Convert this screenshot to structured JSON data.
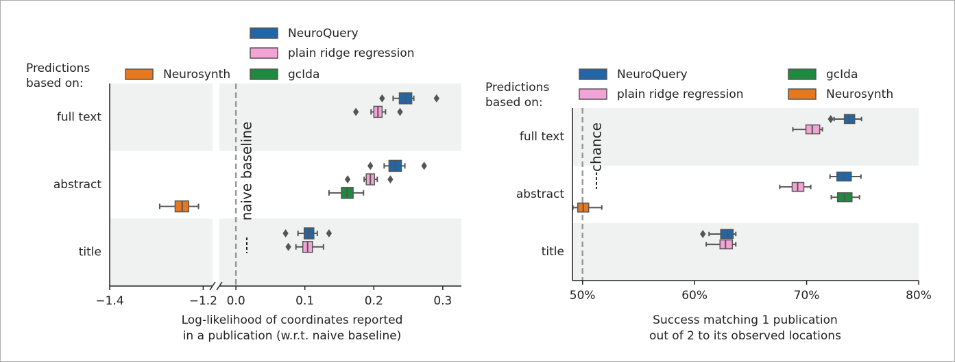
{
  "chart_data": [
    {
      "type": "box",
      "orientation": "horizontal",
      "legend_title": [
        "Predictions",
        "based on:"
      ],
      "categories": [
        "full text",
        "abstract",
        "title"
      ],
      "xlabel": [
        "Log-likelihood of coordinates reported",
        "in a publication (w.r.t. naive baseline)"
      ],
      "xlim": [
        -1.4,
        0.327
      ],
      "xbreak": [
        -1.18,
        -0.024
      ],
      "xticks": [
        {
          "value": -1.4,
          "label": "−1.4"
        },
        {
          "value": -1.2,
          "label": "−1.2"
        },
        {
          "value": 0,
          "label": "0.0"
        },
        0.1,
        0.2,
        0.3
      ],
      "row_shading": "#f0f2f1",
      "reference": {
        "value": 0,
        "label": "naive baseline",
        "color": "#999999"
      },
      "series": [
        {
          "name": "NeuroQuery",
          "color": "#2166a6",
          "boxes": [
            {
              "whislo": 0.228,
              "q1": 0.237,
              "med": 0.246,
              "q3": 0.255,
              "whishi": 0.258,
              "fliers": [
                0.212,
                0.291
              ]
            },
            {
              "whislo": 0.215,
              "q1": 0.222,
              "med": 0.231,
              "q3": 0.24,
              "whishi": 0.245,
              "fliers": [
                0.195,
                0.273
              ]
            },
            {
              "whislo": 0.09,
              "q1": 0.099,
              "med": 0.105,
              "q3": 0.113,
              "whishi": 0.118,
              "fliers": [
                0.072,
                0.135
              ]
            }
          ]
        },
        {
          "name": "plain ridge regression",
          "color": "#f4a3d6",
          "boxes": [
            {
              "whislo": 0.196,
              "q1": 0.2,
              "med": 0.206,
              "q3": 0.212,
              "whishi": 0.217,
              "fliers": [
                0.174,
                0.238
              ]
            },
            {
              "whislo": 0.186,
              "q1": 0.189,
              "med": 0.195,
              "q3": 0.201,
              "whishi": 0.205,
              "fliers": [
                0.162,
                0.224
              ]
            },
            {
              "whislo": 0.087,
              "q1": 0.097,
              "med": 0.104,
              "q3": 0.111,
              "whishi": 0.127,
              "fliers": [
                0.076
              ]
            }
          ]
        },
        {
          "name": "gcIda",
          "color": "#1e8a3e",
          "boxes": [
            null,
            {
              "whislo": 0.135,
              "q1": 0.153,
              "med": 0.161,
              "q3": 0.17,
              "whishi": 0.185,
              "fliers": []
            },
            null
          ]
        },
        {
          "name": "Neurosynth",
          "color": "#e8781e",
          "boxes": [
            null,
            {
              "whislo": -1.293,
              "q1": -1.26,
              "med": -1.245,
              "q3": -1.231,
              "whishi": -1.21,
              "fliers": []
            },
            null
          ]
        }
      ]
    },
    {
      "type": "box",
      "orientation": "horizontal",
      "legend_title": [
        "Predictions",
        "based on:"
      ],
      "categories": [
        "full text",
        "abstract",
        "title"
      ],
      "xlabel": [
        "Success matching 1 publication",
        "out of 2 to its observed locations"
      ],
      "xlim": [
        49.1,
        80
      ],
      "xticks": [
        {
          "value": 50,
          "label": "50%"
        },
        {
          "value": 60,
          "label": "60%"
        },
        {
          "value": 70,
          "label": "70%"
        },
        {
          "value": 80,
          "label": "80%"
        }
      ],
      "row_shading": "#f0f2f1",
      "reference": {
        "value": 50,
        "label": "chance",
        "color": "#999999"
      },
      "series": [
        {
          "name": "NeuroQuery",
          "color": "#2166a6",
          "boxes": [
            {
              "whislo": 72.45,
              "q1": 73.37,
              "med": 73.8,
              "q3": 74.29,
              "whishi": 74.9,
              "fliers": [
                72.15
              ]
            },
            {
              "whislo": 72.09,
              "q1": 72.7,
              "med": 73.3,
              "q3": 73.99,
              "whishi": 74.85,
              "fliers": []
            },
            {
              "whislo": 61.29,
              "q1": 62.33,
              "med": 62.94,
              "q3": 63.44,
              "whishi": 63.68,
              "fliers": [
                60.74
              ]
            }
          ]
        },
        {
          "name": "plain ridge regression",
          "color": "#f4a3d6",
          "boxes": [
            {
              "whislo": 68.77,
              "q1": 69.94,
              "med": 70.5,
              "q3": 71.17,
              "whishi": 71.41,
              "fliers": []
            },
            {
              "whislo": 67.6,
              "q1": 68.71,
              "med": 69.2,
              "q3": 69.75,
              "whishi": 70.37,
              "fliers": []
            },
            {
              "whislo": 61.04,
              "q1": 62.27,
              "med": 62.76,
              "q3": 63.37,
              "whishi": 63.68,
              "fliers": []
            }
          ]
        },
        {
          "name": "gcIda",
          "color": "#1e8a3e",
          "boxes": [
            null,
            {
              "whislo": 72.2,
              "q1": 72.76,
              "med": 73.4,
              "q3": 74.05,
              "whishi": 74.72,
              "fliers": []
            },
            null
          ]
        },
        {
          "name": "Neurosynth",
          "color": "#e8781e",
          "boxes": [
            null,
            {
              "whislo": 49.14,
              "q1": 49.57,
              "med": 50.06,
              "q3": 50.55,
              "whishi": 51.72,
              "fliers": []
            },
            null
          ]
        }
      ]
    }
  ]
}
